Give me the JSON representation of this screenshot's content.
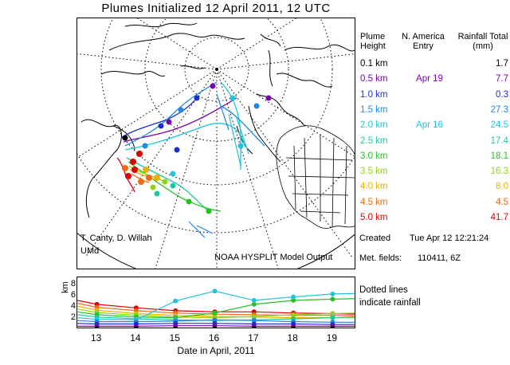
{
  "title": "Plumes Initialized 12 April 2011, 12 UTC",
  "credits": {
    "author": "T. Canty, D. Willah",
    "org": "UMd",
    "model": "NOAA HYSPLIT Model Output"
  },
  "legend": {
    "header_height": "Plume Height",
    "header_entry": "N. America Entry",
    "header_rain": "Rainfall Total (mm)",
    "rows": [
      {
        "height": "0.1 km",
        "entry": "",
        "rain": "1.7",
        "color": "#000000"
      },
      {
        "height": "0.5 km",
        "entry": "Apr 19",
        "rain": "7.7",
        "color": "#7a00b0"
      },
      {
        "height": "1.0 km",
        "entry": "",
        "rain": "0.3",
        "color": "#1a2fd0"
      },
      {
        "height": "1.5 km",
        "entry": "",
        "rain": "27.3",
        "color": "#1e88e5"
      },
      {
        "height": "2.0 km",
        "entry": "Apr 16",
        "rain": "24.5",
        "color": "#22c4dc"
      },
      {
        "height": "2.5 km",
        "entry": "",
        "rain": "17.4",
        "color": "#20c6a4"
      },
      {
        "height": "3.0 km",
        "entry": "",
        "rain": "18.1",
        "color": "#22c422"
      },
      {
        "height": "3.5 km",
        "entry": "",
        "rain": "16.3",
        "color": "#8ed414"
      },
      {
        "height": "4.0 km",
        "entry": "",
        "rain": "8.0",
        "color": "#e8b000"
      },
      {
        "height": "4.5 km",
        "entry": "",
        "rain": "4.5",
        "color": "#f06a14"
      },
      {
        "height": "5.0 km",
        "entry": "",
        "rain": "41.7",
        "color": "#e00000"
      }
    ]
  },
  "created": {
    "label": "Created",
    "value": "Tue Apr 12 12:21:24"
  },
  "met_fields": {
    "label": "Met. fields:",
    "value": "110411,  6Z"
  },
  "rain_note": {
    "line1": "Dotted lines",
    "line2": "indicate rainfall"
  },
  "timeseries": {
    "ylabel": "km",
    "xlabel": "Date in April, 2011",
    "yticks": [
      "8",
      "6",
      "4",
      "2"
    ],
    "xticks": [
      "13",
      "14",
      "15",
      "16",
      "17",
      "18",
      "19"
    ]
  },
  "chart_data": {
    "type": "line",
    "title": "",
    "xlabel": "Date in April, 2011",
    "ylabel": "km",
    "xlim": [
      12.5,
      19.6
    ],
    "ylim": [
      0,
      9
    ],
    "series": [
      {
        "name": "5.0 km",
        "color": "#e00000",
        "x": [
          12.5,
          13,
          14,
          15,
          16,
          17,
          18,
          19,
          19.6
        ],
        "y": [
          5.0,
          4.3,
          3.7,
          3.2,
          3.0,
          3.0,
          2.8,
          2.7,
          2.6
        ]
      },
      {
        "name": "4.5 km",
        "color": "#f06a14",
        "x": [
          12.5,
          13,
          14,
          15,
          16,
          17,
          18,
          19,
          19.6
        ],
        "y": [
          4.5,
          3.8,
          3.2,
          2.8,
          2.6,
          2.5,
          2.4,
          2.4,
          2.3
        ]
      },
      {
        "name": "4.0 km",
        "color": "#e8b000",
        "x": [
          12.5,
          13,
          14,
          15,
          16,
          17,
          18,
          19,
          19.6
        ],
        "y": [
          4.0,
          3.3,
          2.7,
          2.4,
          2.2,
          2.1,
          2.0,
          2.0,
          2.0
        ]
      },
      {
        "name": "3.5 km",
        "color": "#8ed414",
        "x": [
          12.5,
          13,
          14,
          15,
          16,
          17,
          18,
          19,
          19.6
        ],
        "y": [
          3.5,
          2.9,
          2.4,
          2.1,
          2.0,
          2.2,
          2.5,
          2.7,
          2.8
        ]
      },
      {
        "name": "3.0 km",
        "color": "#22c422",
        "x": [
          12.5,
          13,
          14,
          15,
          16,
          17,
          18,
          19,
          19.6
        ],
        "y": [
          3.0,
          2.5,
          2.1,
          2.0,
          2.8,
          4.3,
          5.0,
          5.2,
          5.3
        ]
      },
      {
        "name": "2.5 km",
        "color": "#20c6a4",
        "x": [
          12.5,
          13,
          14,
          15,
          16,
          17,
          18,
          19,
          19.6
        ],
        "y": [
          2.5,
          2.1,
          1.8,
          1.6,
          1.5,
          1.6,
          1.8,
          2.0,
          2.1
        ]
      },
      {
        "name": "2.0 km",
        "color": "#22c4dc",
        "x": [
          12.5,
          13,
          14,
          15,
          16,
          17,
          18,
          19,
          19.6
        ],
        "y": [
          2.0,
          1.7,
          1.6,
          4.9,
          6.6,
          5.0,
          5.6,
          6.1,
          6.2
        ]
      },
      {
        "name": "1.5 km",
        "color": "#1e88e5",
        "x": [
          12.5,
          13,
          14,
          15,
          16,
          17,
          18,
          19,
          19.6
        ],
        "y": [
          1.5,
          1.3,
          1.3,
          1.4,
          1.6,
          1.5,
          1.3,
          1.2,
          1.2
        ]
      },
      {
        "name": "1.0 km",
        "color": "#1a2fd0",
        "x": [
          12.5,
          13,
          14,
          15,
          16,
          17,
          18,
          19,
          19.6
        ],
        "y": [
          1.0,
          0.9,
          0.9,
          1.0,
          1.0,
          0.9,
          0.9,
          0.8,
          0.8
        ]
      },
      {
        "name": "0.5 km",
        "color": "#7a00b0",
        "x": [
          12.5,
          13,
          14,
          15,
          16,
          17,
          18,
          19,
          19.6
        ],
        "y": [
          0.5,
          0.5,
          0.5,
          0.6,
          0.6,
          0.5,
          0.5,
          0.5,
          0.5
        ]
      },
      {
        "name": "0.1 km",
        "color": "#000000",
        "x": [
          12.5,
          13,
          14,
          15,
          16,
          17,
          18,
          19,
          19.6
        ],
        "y": [
          0.1,
          0.1,
          0.1,
          0.1,
          0.1,
          0.1,
          0.1,
          0.1,
          0.1
        ]
      }
    ]
  }
}
